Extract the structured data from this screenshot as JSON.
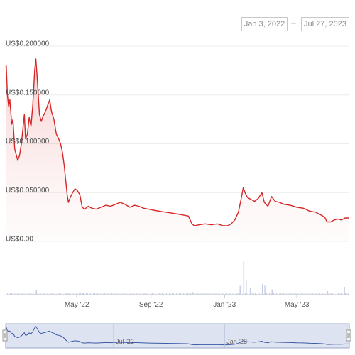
{
  "range": {
    "from": "Jan 3, 2022",
    "to": "Jul 27, 2023",
    "arrow": "→"
  },
  "chart_data": {
    "type": "line",
    "y_ticks": [
      "US$0.200000",
      "US$0.150000",
      "US$0.100000",
      "US$0.050000",
      "US$0.00"
    ],
    "ylim": [
      0,
      0.2
    ],
    "x_ticks": [
      "May '22",
      "Sep '22",
      "Jan '23",
      "May '23"
    ],
    "navigator_ticks": [
      "Jul '22",
      "Jan '23"
    ],
    "grid": true,
    "series": [
      {
        "values_desc": "price",
        "color": "#d62728",
        "points": [
          [
            "2022-01-03",
            0.178
          ],
          [
            "2022-01-04",
            0.18
          ],
          [
            "2022-01-06",
            0.15
          ],
          [
            "2022-01-08",
            0.138
          ],
          [
            "2022-01-10",
            0.145
          ],
          [
            "2022-01-13",
            0.12
          ],
          [
            "2022-01-15",
            0.125
          ],
          [
            "2022-01-18",
            0.095
          ],
          [
            "2022-01-20",
            0.09
          ],
          [
            "2022-01-23",
            0.083
          ],
          [
            "2022-01-26",
            0.088
          ],
          [
            "2022-01-29",
            0.1
          ],
          [
            "2022-02-01",
            0.118
          ],
          [
            "2022-02-03",
            0.13
          ],
          [
            "2022-02-05",
            0.105
          ],
          [
            "2022-02-08",
            0.11
          ],
          [
            "2022-02-11",
            0.127
          ],
          [
            "2022-02-14",
            0.118
          ],
          [
            "2022-02-17",
            0.14
          ],
          [
            "2022-02-20",
            0.175
          ],
          [
            "2022-02-22",
            0.187
          ],
          [
            "2022-02-24",
            0.17
          ],
          [
            "2022-02-26",
            0.15
          ],
          [
            "2022-02-28",
            0.13
          ],
          [
            "2022-03-03",
            0.123
          ],
          [
            "2022-03-06",
            0.128
          ],
          [
            "2022-03-10",
            0.133
          ],
          [
            "2022-03-14",
            0.14
          ],
          [
            "2022-03-17",
            0.145
          ],
          [
            "2022-03-20",
            0.133
          ],
          [
            "2022-03-24",
            0.125
          ],
          [
            "2022-03-28",
            0.11
          ],
          [
            "2022-04-01",
            0.105
          ],
          [
            "2022-04-04",
            0.1
          ],
          [
            "2022-04-07",
            0.092
          ],
          [
            "2022-04-10",
            0.078
          ],
          [
            "2022-04-13",
            0.06
          ],
          [
            "2022-04-15",
            0.048
          ],
          [
            "2022-04-17",
            0.04
          ],
          [
            "2022-04-20",
            0.045
          ],
          [
            "2022-04-24",
            0.05
          ],
          [
            "2022-04-28",
            0.054
          ],
          [
            "2022-05-02",
            0.052
          ],
          [
            "2022-05-06",
            0.048
          ],
          [
            "2022-05-10",
            0.035
          ],
          [
            "2022-05-14",
            0.033
          ],
          [
            "2022-05-20",
            0.036
          ],
          [
            "2022-05-26",
            0.034
          ],
          [
            "2022-06-02",
            0.033
          ],
          [
            "2022-06-10",
            0.035
          ],
          [
            "2022-06-18",
            0.037
          ],
          [
            "2022-06-26",
            0.036
          ],
          [
            "2022-07-04",
            0.038
          ],
          [
            "2022-07-12",
            0.04
          ],
          [
            "2022-07-20",
            0.038
          ],
          [
            "2022-07-28",
            0.035
          ],
          [
            "2022-08-05",
            0.037
          ],
          [
            "2022-08-12",
            0.036
          ],
          [
            "2022-08-20",
            0.034
          ],
          [
            "2022-08-28",
            0.033
          ],
          [
            "2022-09-05",
            0.032
          ],
          [
            "2022-09-15",
            0.031
          ],
          [
            "2022-09-25",
            0.03
          ],
          [
            "2022-10-05",
            0.029
          ],
          [
            "2022-10-15",
            0.028
          ],
          [
            "2022-10-25",
            0.027
          ],
          [
            "2022-11-02",
            0.026
          ],
          [
            "2022-11-08",
            0.018
          ],
          [
            "2022-11-12",
            0.016
          ],
          [
            "2022-11-20",
            0.017
          ],
          [
            "2022-11-30",
            0.018
          ],
          [
            "2022-12-10",
            0.017
          ],
          [
            "2022-12-20",
            0.018
          ],
          [
            "2022-12-30",
            0.016
          ],
          [
            "2023-01-06",
            0.016
          ],
          [
            "2023-01-12",
            0.018
          ],
          [
            "2023-01-18",
            0.022
          ],
          [
            "2023-01-24",
            0.03
          ],
          [
            "2023-01-28",
            0.042
          ],
          [
            "2023-02-01",
            0.055
          ],
          [
            "2023-02-04",
            0.05
          ],
          [
            "2023-02-08",
            0.045
          ],
          [
            "2023-02-14",
            0.043
          ],
          [
            "2023-02-20",
            0.041
          ],
          [
            "2023-02-26",
            0.044
          ],
          [
            "2023-03-04",
            0.05
          ],
          [
            "2023-03-08",
            0.04
          ],
          [
            "2023-03-14",
            0.036
          ],
          [
            "2023-03-20",
            0.046
          ],
          [
            "2023-03-26",
            0.041
          ],
          [
            "2023-04-02",
            0.04
          ],
          [
            "2023-04-10",
            0.038
          ],
          [
            "2023-04-20",
            0.037
          ],
          [
            "2023-05-01",
            0.035
          ],
          [
            "2023-05-12",
            0.034
          ],
          [
            "2023-05-22",
            0.031
          ],
          [
            "2023-06-01",
            0.03
          ],
          [
            "2023-06-10",
            0.027
          ],
          [
            "2023-06-16",
            0.025
          ],
          [
            "2023-06-20",
            0.02
          ],
          [
            "2023-06-26",
            0.02
          ],
          [
            "2023-07-02",
            0.022
          ],
          [
            "2023-07-08",
            0.023
          ],
          [
            "2023-07-14",
            0.022
          ],
          [
            "2023-07-20",
            0.024
          ],
          [
            "2023-07-27",
            0.024
          ]
        ]
      }
    ],
    "volume": {
      "color": "#c6cfe3",
      "spikes": [
        [
          "2022-01-10",
          0.05
        ],
        [
          "2022-02-22",
          0.12
        ],
        [
          "2022-04-14",
          0.06
        ],
        [
          "2022-05-10",
          0.05
        ],
        [
          "2022-11-08",
          0.08
        ],
        [
          "2023-01-26",
          0.25
        ],
        [
          "2023-02-01",
          0.95
        ],
        [
          "2023-02-05",
          0.4
        ],
        [
          "2023-02-12",
          0.2
        ],
        [
          "2023-03-04",
          0.3
        ],
        [
          "2023-03-08",
          0.25
        ],
        [
          "2023-03-20",
          0.15
        ],
        [
          "2023-06-20",
          0.1
        ],
        [
          "2023-07-18",
          0.22
        ]
      ]
    }
  }
}
